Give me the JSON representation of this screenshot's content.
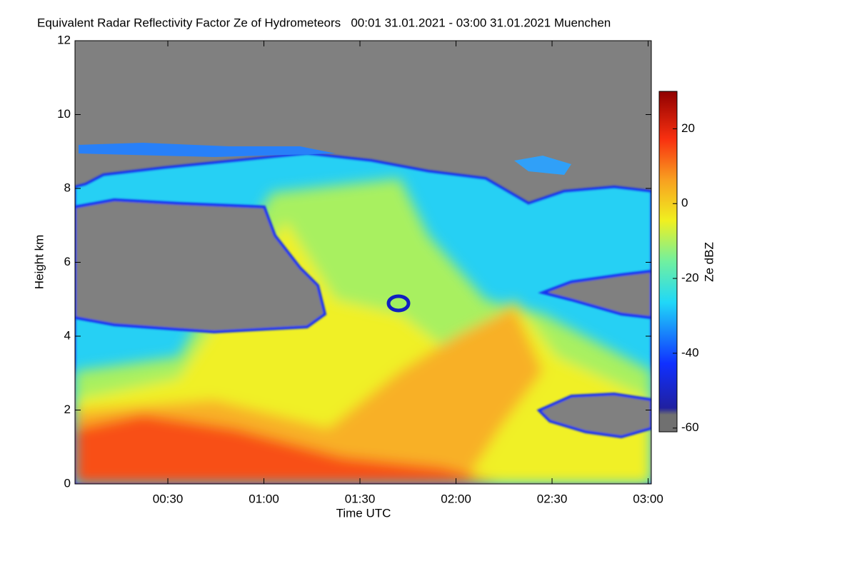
{
  "chart_data": {
    "type": "heatmap",
    "title": "Equivalent Radar Reflectivity Factor Ze of Hydrometeors   00:01 31.01.2021 - 03:00 31.01.2021 Muenchen",
    "x_label": "Time UTC",
    "y_label": "Height km",
    "colorbar_label": "Ze dBZ",
    "xlim": [
      1,
      181
    ],
    "xticks": [
      {
        "value": 30,
        "label": "00:30"
      },
      {
        "value": 60,
        "label": "01:00"
      },
      {
        "value": 90,
        "label": "01:30"
      },
      {
        "value": 120,
        "label": "02:00"
      },
      {
        "value": 150,
        "label": "02:30"
      },
      {
        "value": 180,
        "label": "03:00"
      }
    ],
    "ylim": [
      0,
      12
    ],
    "yticks": [
      0,
      2,
      4,
      6,
      8,
      10,
      12
    ],
    "zlim": [
      -61,
      30
    ],
    "zticks": [
      -60,
      -40,
      -20,
      0,
      20
    ]
  }
}
